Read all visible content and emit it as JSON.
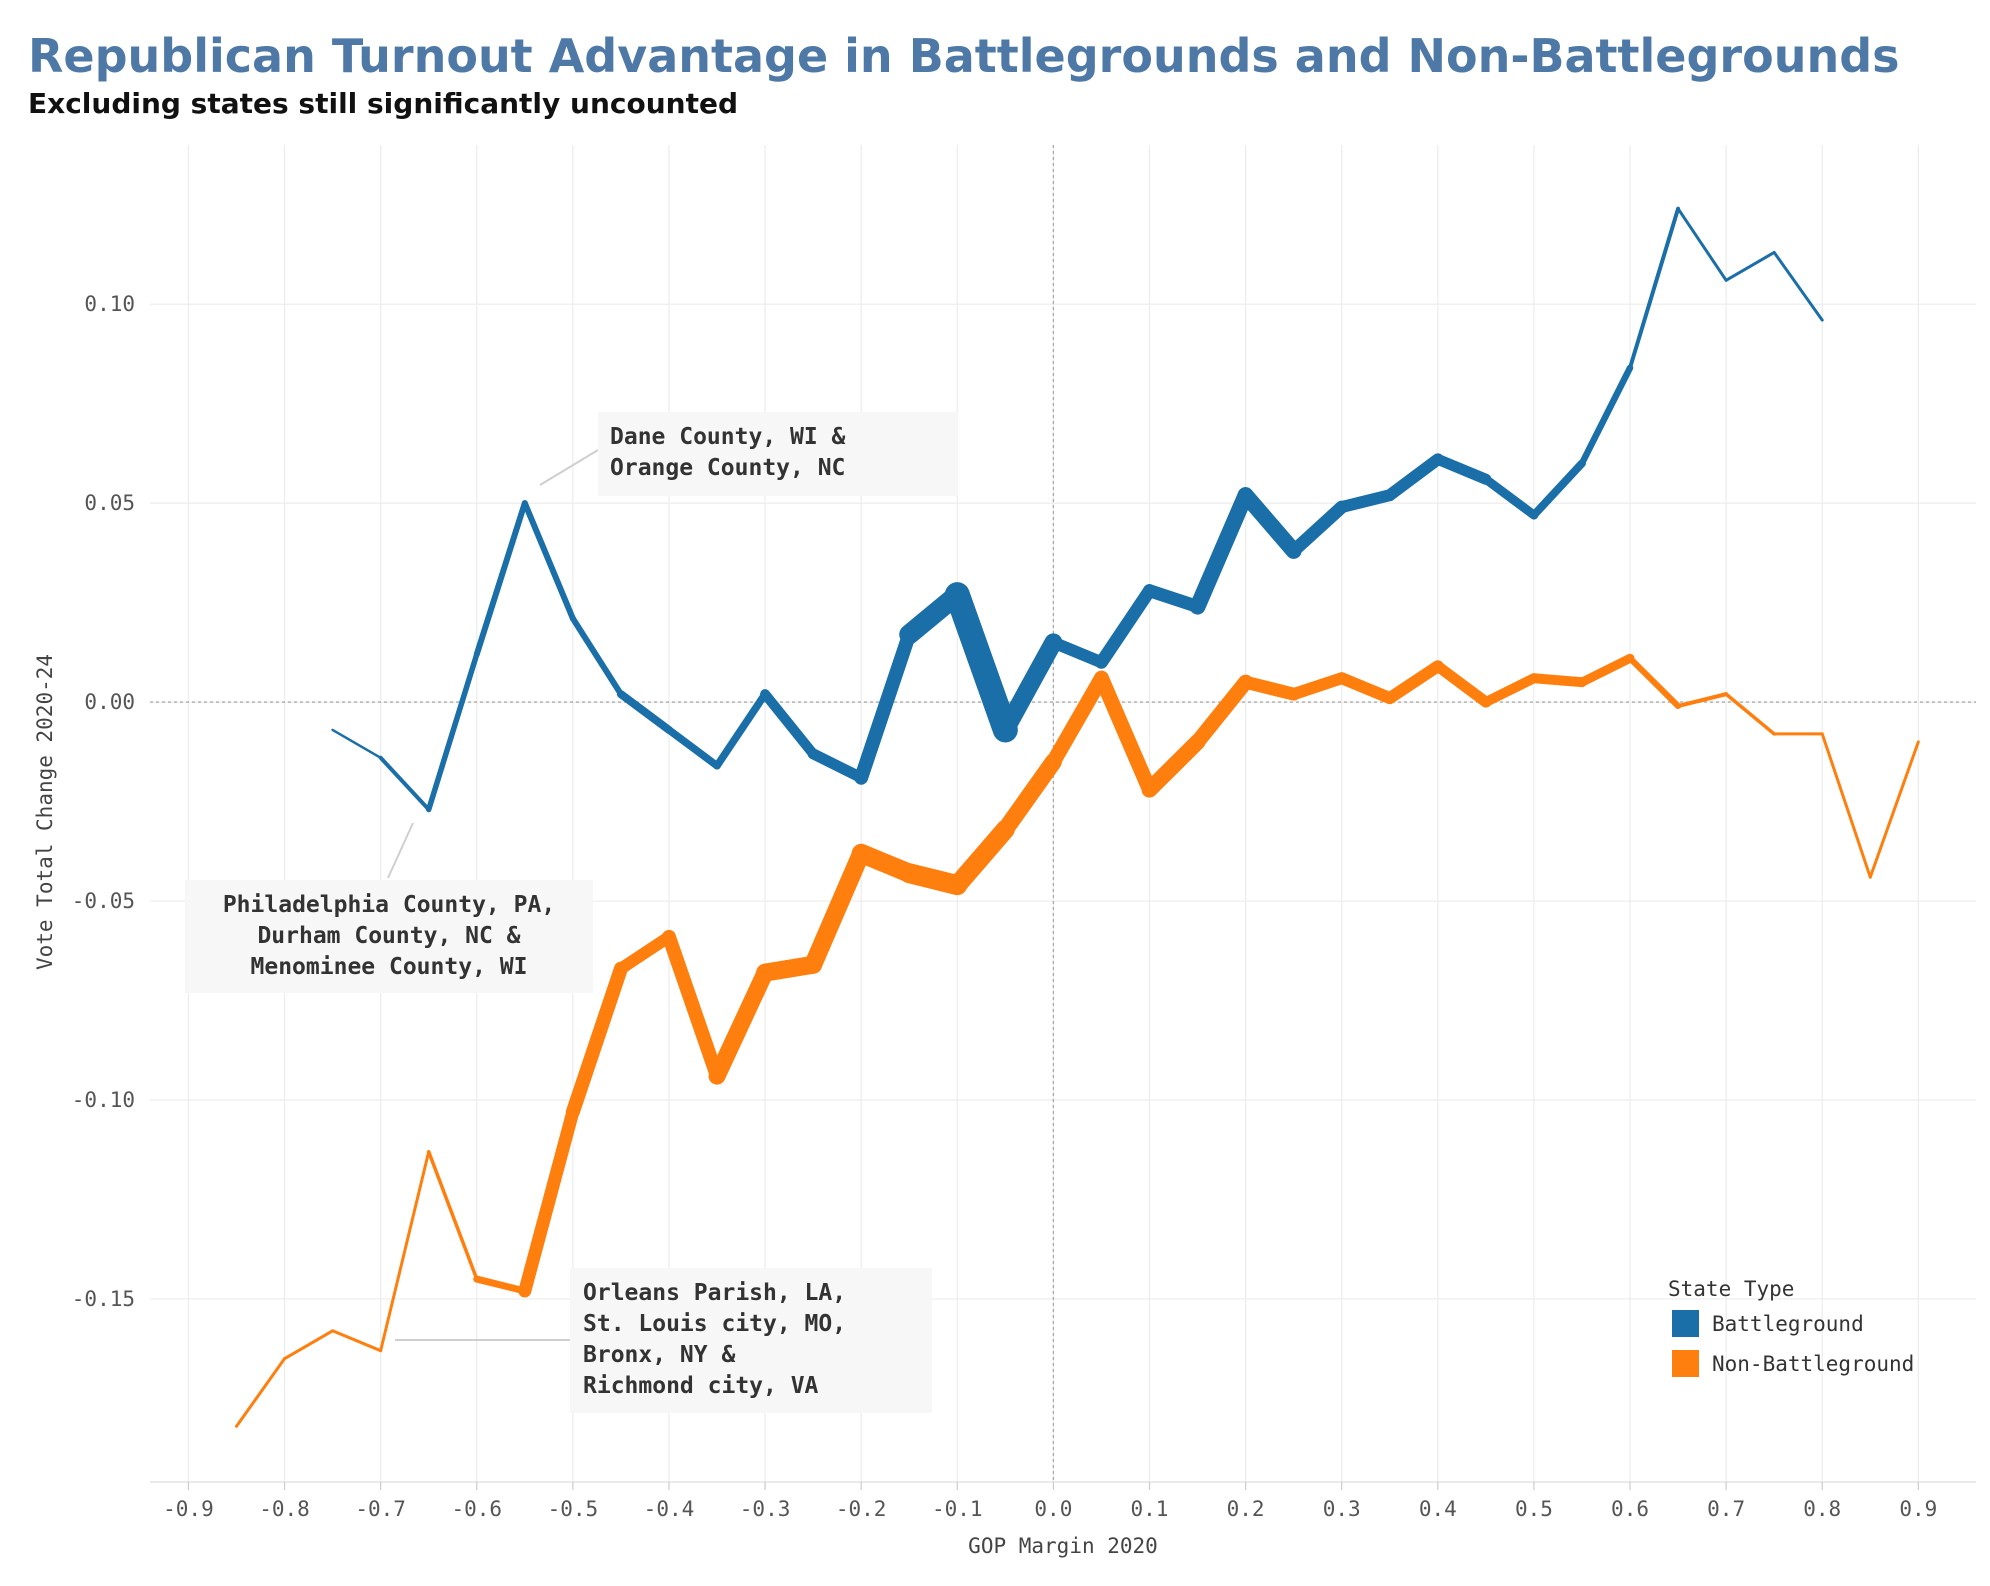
{
  "chart_data": {
    "type": "line",
    "title": "Republican Turnout Advantage in Battlegrounds and Non-Battlegrounds",
    "subtitle": "Excluding states still significantly uncounted",
    "xlabel": "GOP Margin 2020",
    "ylabel": "Vote Total Change 2020-24",
    "xlim": [
      -0.94,
      0.96
    ],
    "ylim": [
      -0.196,
      0.14
    ],
    "x_ticks": [
      -0.9,
      -0.8,
      -0.7,
      -0.6,
      -0.5,
      -0.4,
      -0.3,
      -0.2,
      -0.1,
      0.0,
      0.1,
      0.2,
      0.3,
      0.4,
      0.5,
      0.6,
      0.7,
      0.8,
      0.9
    ],
    "x_tick_labels": [
      "-0.9",
      "-0.8",
      "-0.7",
      "-0.6",
      "-0.5",
      "-0.4",
      "-0.3",
      "-0.2",
      "-0.1",
      "0.0",
      "0.1",
      "0.2",
      "0.3",
      "0.4",
      "0.5",
      "0.6",
      "0.7",
      "0.8",
      "0.9"
    ],
    "y_ticks": [
      -0.15,
      -0.1,
      -0.05,
      0.0,
      0.05,
      0.1
    ],
    "y_tick_labels": [
      "-0.15",
      "-0.10",
      "-0.05",
      "0.00",
      "0.05",
      "0.10"
    ],
    "grid": true,
    "reference_lines": {
      "x": 0,
      "y": 0
    },
    "legend": {
      "title": "State Type",
      "placement": "bottom-right",
      "items": [
        {
          "label": "Battleground",
          "color": "#1a6fa8"
        },
        {
          "label": "Non-Battleground",
          "color": "#ff7f0e"
        }
      ]
    },
    "series": [
      {
        "name": "Battleground",
        "color": "#1a6fa8",
        "x": [
          -0.75,
          -0.7,
          -0.65,
          -0.6,
          -0.55,
          -0.5,
          -0.45,
          -0.4,
          -0.35,
          -0.3,
          -0.25,
          -0.2,
          -0.15,
          -0.1,
          -0.05,
          0.0,
          0.05,
          0.1,
          0.15,
          0.2,
          0.25,
          0.3,
          0.35,
          0.4,
          0.45,
          0.5,
          0.55,
          0.6,
          0.65,
          0.7,
          0.75,
          0.8
        ],
        "y": [
          -0.007,
          -0.014,
          -0.027,
          0.012,
          0.05,
          0.021,
          0.002,
          -0.007,
          -0.016,
          0.002,
          -0.013,
          -0.019,
          0.017,
          0.027,
          -0.007,
          0.015,
          0.01,
          0.028,
          0.024,
          0.052,
          0.038,
          0.049,
          0.052,
          0.061,
          0.056,
          0.047,
          0.06,
          0.084,
          0.124,
          0.106,
          0.113,
          0.096
        ],
        "weight": [
          2,
          3,
          5,
          6,
          6,
          6,
          6,
          10,
          5,
          10,
          10,
          12,
          16,
          24,
          26,
          10,
          14,
          12,
          14,
          18,
          14,
          12,
          12,
          12,
          10,
          8,
          8,
          5,
          3,
          3,
          3,
          3
        ]
      },
      {
        "name": "Non-Battleground",
        "color": "#ff7f0e",
        "x": [
          -0.85,
          -0.8,
          -0.75,
          -0.7,
          -0.65,
          -0.6,
          -0.55,
          -0.5,
          -0.45,
          -0.4,
          -0.35,
          -0.3,
          -0.25,
          -0.2,
          -0.15,
          -0.1,
          -0.05,
          0.0,
          0.05,
          0.1,
          0.15,
          0.2,
          0.25,
          0.3,
          0.35,
          0.4,
          0.45,
          0.5,
          0.55,
          0.6,
          0.65,
          0.7,
          0.75,
          0.8,
          0.85,
          0.9
        ],
        "y": [
          -0.182,
          -0.165,
          -0.158,
          -0.163,
          -0.113,
          -0.145,
          -0.148,
          -0.103,
          -0.067,
          -0.059,
          -0.094,
          -0.068,
          -0.066,
          -0.038,
          -0.043,
          -0.046,
          -0.032,
          -0.015,
          0.006,
          -0.022,
          -0.01,
          0.005,
          0.002,
          0.006,
          0.001,
          0.009,
          0.0,
          0.006,
          0.005,
          0.011,
          -0.001,
          0.002,
          -0.008,
          -0.008,
          -0.044,
          -0.01
        ],
        "weight": [
          3,
          3,
          3,
          3,
          3,
          4,
          10,
          16,
          12,
          12,
          16,
          18,
          18,
          18,
          20,
          20,
          18,
          16,
          14,
          16,
          16,
          14,
          12,
          12,
          12,
          12,
          10,
          10,
          10,
          8,
          4,
          4,
          3,
          3,
          3,
          3
        ]
      }
    ],
    "annotations": [
      {
        "lines": [
          "Dane County, WI &",
          "Orange County, NC"
        ],
        "x": -0.55,
        "y": 0.05
      },
      {
        "lines": [
          "Philadelphia County, PA,",
          "Durham County, NC &",
          "Menominee County, WI"
        ],
        "x": -0.65,
        "y": -0.027
      },
      {
        "lines": [
          "Orleans Parish, LA,",
          "St. Louis city, MO,",
          "Bronx, NY &",
          "Richmond city, VA"
        ],
        "x": -0.7,
        "y": -0.163
      }
    ]
  }
}
